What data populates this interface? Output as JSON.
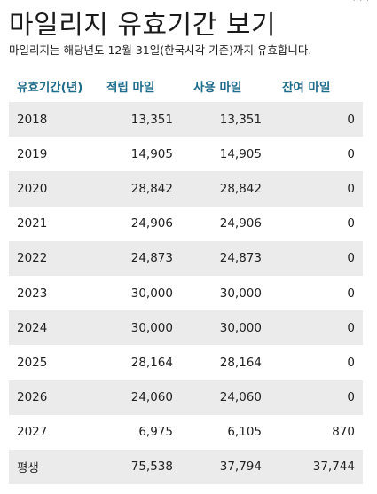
{
  "header": {
    "close_mark": "· · ·",
    "title": "마일리지 유효기간 보기",
    "subtitle": "마일리지는 해당년도 12월 31일(한국시각 기준)까지 유효합니다."
  },
  "table": {
    "columns": [
      "유효기간(년)",
      "적립 마일",
      "사용 마일",
      "잔여 마일"
    ],
    "rows": [
      {
        "year": "2018",
        "earned": "13,351",
        "used": "13,351",
        "remaining": "0"
      },
      {
        "year": "2019",
        "earned": "14,905",
        "used": "14,905",
        "remaining": "0"
      },
      {
        "year": "2020",
        "earned": "28,842",
        "used": "28,842",
        "remaining": "0"
      },
      {
        "year": "2021",
        "earned": "24,906",
        "used": "24,906",
        "remaining": "0"
      },
      {
        "year": "2022",
        "earned": "24,873",
        "used": "24,873",
        "remaining": "0"
      },
      {
        "year": "2023",
        "earned": "30,000",
        "used": "30,000",
        "remaining": "0"
      },
      {
        "year": "2024",
        "earned": "30,000",
        "used": "30,000",
        "remaining": "0"
      },
      {
        "year": "2025",
        "earned": "28,164",
        "used": "28,164",
        "remaining": "0"
      },
      {
        "year": "2026",
        "earned": "24,060",
        "used": "24,060",
        "remaining": "0"
      },
      {
        "year": "2027",
        "earned": "6,975",
        "used": "6,105",
        "remaining": "870"
      },
      {
        "year": "평생",
        "earned": "75,538",
        "used": "37,794",
        "remaining": "37,744"
      }
    ]
  },
  "colors": {
    "header_text": "#1e6b8a",
    "row_shade": "#ebebeb"
  }
}
